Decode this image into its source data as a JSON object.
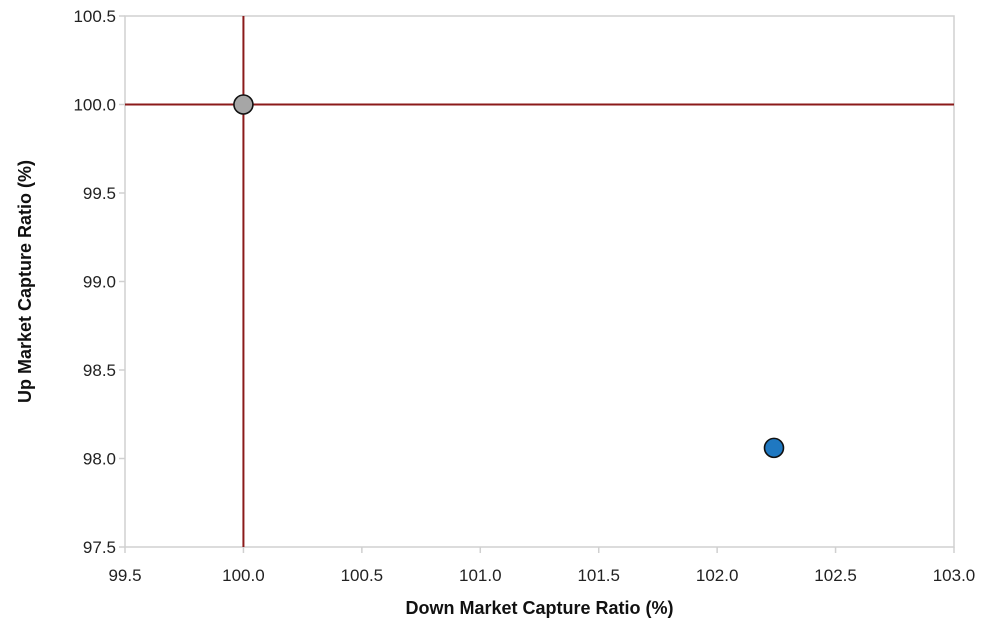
{
  "chart_data": {
    "type": "scatter",
    "title": "",
    "xlabel": "Down Market Capture Ratio (%)",
    "ylabel": "Up Market Capture Ratio (%)",
    "xlim": [
      99.5,
      103.0
    ],
    "ylim": [
      97.5,
      100.5
    ],
    "x_ticks": [
      "99.5",
      "100.0",
      "100.5",
      "101.0",
      "101.5",
      "102.0",
      "102.5",
      "103.0"
    ],
    "y_ticks": [
      "97.5",
      "98.0",
      "98.5",
      "99.0",
      "99.5",
      "100.0",
      "100.5"
    ],
    "grid": false,
    "reference_lines": {
      "x": 100.0,
      "y": 100.0,
      "color": "#8b1a1a"
    },
    "points": [
      {
        "x": 100.0,
        "y": 100.0,
        "color": "#a6a6a6"
      },
      {
        "x": 102.24,
        "y": 98.06,
        "color": "#1f78c1"
      }
    ],
    "frame_color": "#d0d0d0"
  }
}
